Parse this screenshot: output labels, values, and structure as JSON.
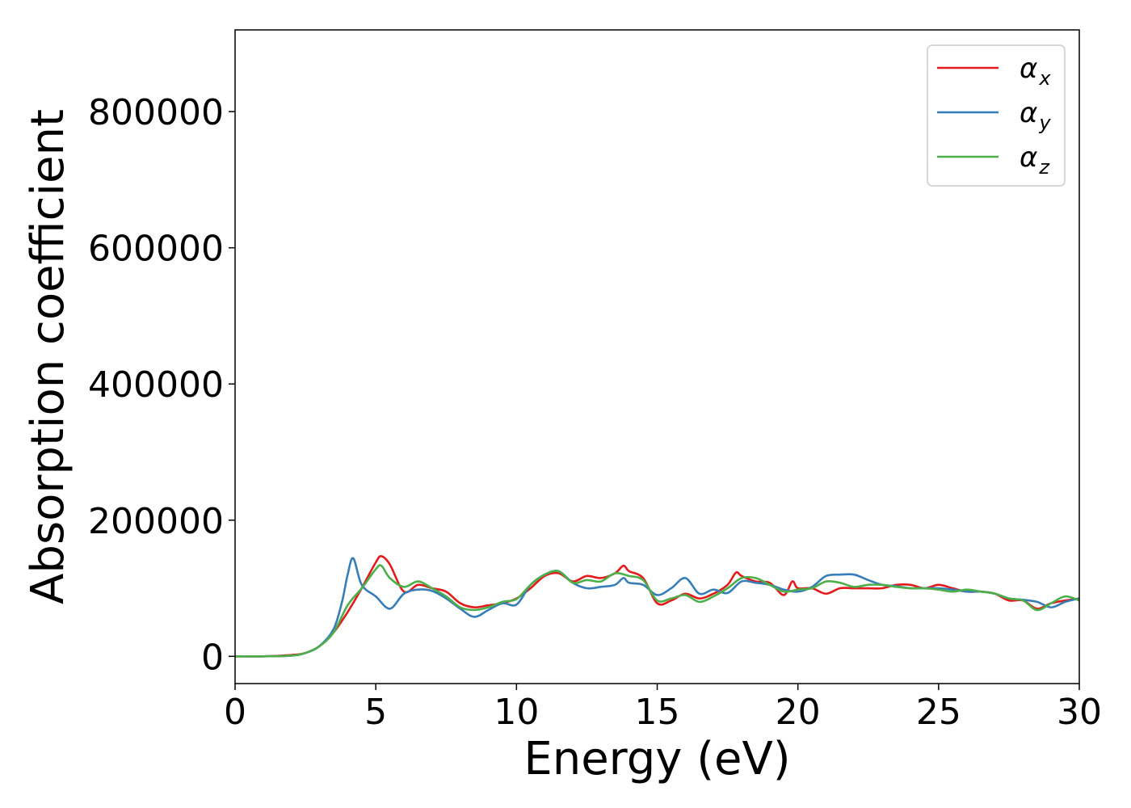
{
  "chart_data": {
    "type": "line",
    "title": "",
    "xlabel": "Energy (eV)",
    "ylabel": "Absorption coefficient",
    "xlim": [
      0,
      30
    ],
    "ylim": [
      -40000,
      920000
    ],
    "xticks": [
      0,
      5,
      10,
      15,
      20,
      25,
      30
    ],
    "yticks": [
      0,
      200000,
      400000,
      600000,
      800000
    ],
    "grid": false,
    "legend_position": "top-right",
    "series": [
      {
        "name": "α",
        "subscript": "x",
        "color": "#e41a1c",
        "x": [
          0,
          1,
          2,
          2.5,
          3,
          3.5,
          4,
          4.5,
          5,
          5.2,
          5.5,
          6,
          6.5,
          7,
          7.5,
          8,
          8.5,
          9,
          9.5,
          10,
          10.5,
          11,
          11.5,
          12,
          12.5,
          13,
          13.5,
          13.8,
          14,
          14.5,
          15,
          15.5,
          16,
          16.5,
          17,
          17.5,
          17.8,
          18,
          18.5,
          19,
          19.5,
          19.8,
          20,
          20.5,
          21,
          21.5,
          22,
          22.5,
          23,
          23.5,
          24,
          24.5,
          25,
          25.5,
          26,
          26.5,
          27,
          27.5,
          28,
          28.5,
          29,
          29.5,
          30
        ],
        "y": [
          0,
          0,
          2000,
          5000,
          15000,
          35000,
          65000,
          100000,
          138000,
          147000,
          135000,
          95000,
          105000,
          100000,
          95000,
          78000,
          72000,
          75000,
          78000,
          85000,
          100000,
          118000,
          122000,
          110000,
          118000,
          115000,
          122000,
          133000,
          125000,
          115000,
          78000,
          82000,
          92000,
          85000,
          92000,
          105000,
          123000,
          118000,
          110000,
          108000,
          90000,
          110000,
          100000,
          100000,
          92000,
          100000,
          100000,
          100000,
          100000,
          105000,
          105000,
          100000,
          105000,
          100000,
          95000,
          95000,
          92000,
          82000,
          82000,
          70000,
          78000,
          82000,
          85000
        ]
      },
      {
        "name": "α",
        "subscript": "y",
        "color": "#377eb8",
        "x": [
          0,
          1,
          2,
          2.5,
          3,
          3.5,
          3.8,
          4,
          4.2,
          4.5,
          5,
          5.5,
          6,
          6.5,
          7,
          7.5,
          8,
          8.5,
          9,
          9.5,
          10,
          10.5,
          11,
          11.5,
          12,
          12.5,
          13,
          13.5,
          13.8,
          14,
          14.5,
          15,
          15.5,
          16,
          16.5,
          17,
          17.5,
          18,
          18.5,
          19,
          19.5,
          20,
          20.5,
          21,
          21.5,
          22,
          22.5,
          23,
          23.5,
          24,
          24.5,
          25,
          25.5,
          26,
          26.5,
          27,
          27.5,
          28,
          28.5,
          29,
          29.5,
          30
        ],
        "y": [
          0,
          0,
          1000,
          5000,
          15000,
          40000,
          80000,
          120000,
          144000,
          105000,
          88000,
          70000,
          92000,
          98000,
          96000,
          85000,
          70000,
          58000,
          68000,
          78000,
          76000,
          105000,
          120000,
          125000,
          108000,
          100000,
          102000,
          105000,
          115000,
          108000,
          105000,
          90000,
          100000,
          115000,
          92000,
          98000,
          93000,
          110000,
          108000,
          105000,
          98000,
          95000,
          102000,
          118000,
          120000,
          120000,
          112000,
          105000,
          103000,
          100000,
          100000,
          100000,
          98000,
          95000,
          95000,
          92000,
          85000,
          83000,
          80000,
          72000,
          80000,
          85000
        ]
      },
      {
        "name": "α",
        "subscript": "z",
        "color": "#4daf4a",
        "x": [
          0,
          1,
          2,
          2.5,
          3,
          3.5,
          4,
          4.5,
          5,
          5.2,
          5.5,
          6,
          6.5,
          7,
          7.5,
          8,
          8.5,
          9,
          9.5,
          10,
          10.5,
          11,
          11.5,
          12,
          12.5,
          13,
          13.5,
          14,
          14.5,
          15,
          15.5,
          16,
          16.5,
          17,
          17.5,
          18,
          18.5,
          19,
          19.5,
          20,
          20.5,
          21,
          21.5,
          22,
          22.5,
          23,
          23.5,
          24,
          24.5,
          25,
          25.5,
          26,
          26.5,
          27,
          27.5,
          28,
          28.5,
          29,
          29.5,
          30
        ],
        "y": [
          0,
          0,
          1000,
          5000,
          15000,
          35000,
          75000,
          100000,
          128000,
          133000,
          115000,
          102000,
          110000,
          100000,
          88000,
          72000,
          68000,
          72000,
          80000,
          84000,
          105000,
          120000,
          125000,
          108000,
          112000,
          110000,
          122000,
          118000,
          112000,
          82000,
          85000,
          90000,
          80000,
          88000,
          100000,
          115000,
          115000,
          105000,
          95000,
          98000,
          100000,
          110000,
          108000,
          102000,
          105000,
          105000,
          102000,
          100000,
          100000,
          98000,
          95000,
          98000,
          95000,
          92000,
          85000,
          82000,
          68000,
          78000,
          88000,
          82000
        ]
      }
    ]
  }
}
